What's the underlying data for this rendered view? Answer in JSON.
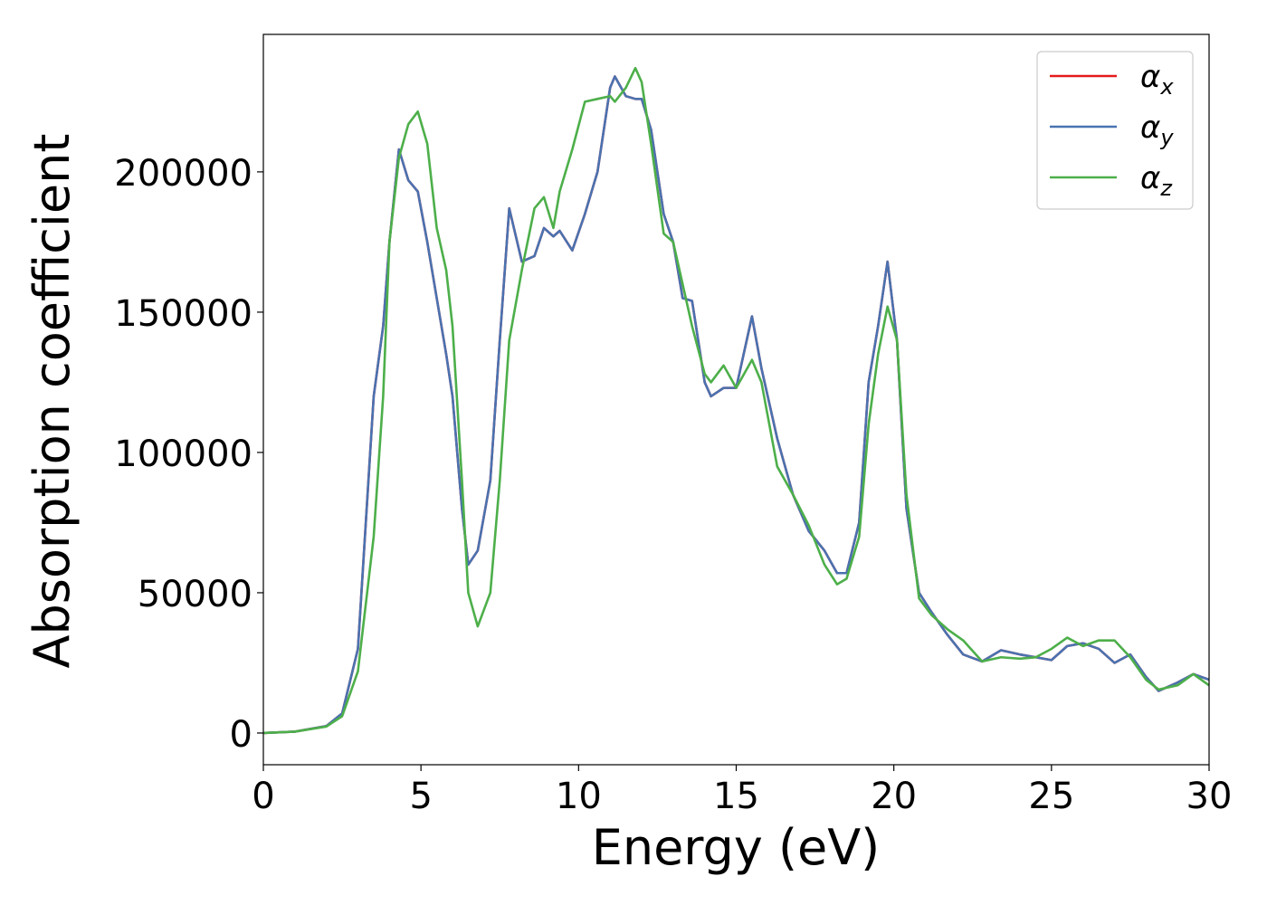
{
  "chart_data": {
    "type": "line",
    "xlabel": "Energy (eV)",
    "ylabel": "Absorption coefficient",
    "x": [
      0,
      1,
      2,
      2.5,
      3,
      3.5,
      3.8,
      4,
      4.3,
      4.6,
      4.9,
      5.2,
      5.5,
      5.8,
      6,
      6.3,
      6.5,
      6.8,
      7.2,
      7.5,
      7.8,
      8.2,
      8.6,
      8.9,
      9.2,
      9.4,
      9.8,
      10.2,
      10.6,
      11,
      11.15,
      11.5,
      11.8,
      12,
      12.3,
      12.7,
      13,
      13.3,
      13.6,
      14,
      14.2,
      14.6,
      15,
      15.5,
      15.8,
      16.3,
      16.8,
      17.3,
      17.8,
      18.2,
      18.5,
      18.9,
      19.2,
      19.5,
      19.8,
      20.1,
      20.4,
      20.8,
      21.2,
      21.7,
      22.2,
      22.8,
      23.4,
      24,
      24.5,
      25,
      25.5,
      26,
      26.5,
      27,
      27.5,
      28,
      28.4,
      29,
      29.5,
      30
    ],
    "series": [
      {
        "name": "αx",
        "color": "#e41a1c",
        "values": [
          0,
          500,
          2500,
          7000,
          30000,
          120000,
          145000,
          175000,
          208000,
          197000,
          193000,
          175000,
          155000,
          135000,
          120000,
          80000,
          60000,
          65000,
          90000,
          140000,
          187000,
          168000,
          170000,
          180000,
          177000,
          179000,
          172000,
          185000,
          200000,
          230000,
          234000,
          227000,
          226000,
          226000,
          215000,
          185000,
          175000,
          155000,
          154000,
          125000,
          120000,
          123000,
          123000,
          148500,
          130000,
          105000,
          85000,
          72000,
          65000,
          57000,
          57000,
          75000,
          125000,
          145000,
          168000,
          140000,
          80000,
          50000,
          43000,
          35000,
          28000,
          25500,
          29500,
          28000,
          27000,
          26000,
          31000,
          32000,
          30000,
          25000,
          28000,
          20000,
          15000,
          18000,
          21000,
          19000
        ]
      },
      {
        "name": "αy",
        "color": "#4a72b0",
        "values": [
          0,
          500,
          2500,
          7000,
          30000,
          120000,
          145000,
          175000,
          208000,
          197000,
          193000,
          175000,
          155000,
          135000,
          120000,
          80000,
          60000,
          65000,
          90000,
          140000,
          187000,
          168000,
          170000,
          180000,
          177000,
          179000,
          172000,
          185000,
          200000,
          230000,
          234000,
          227000,
          226000,
          226000,
          215000,
          185000,
          175000,
          155000,
          154000,
          125000,
          120000,
          123000,
          123000,
          148500,
          130000,
          105000,
          85000,
          72000,
          65000,
          57000,
          57000,
          75000,
          125000,
          145000,
          168000,
          140000,
          80000,
          50000,
          43000,
          35000,
          28000,
          25500,
          29500,
          28000,
          27000,
          26000,
          31000,
          32000,
          30000,
          25000,
          28000,
          20000,
          15000,
          18000,
          21000,
          19000
        ]
      },
      {
        "name": "αz",
        "color": "#4daf4a",
        "values": [
          0,
          500,
          2300,
          6000,
          22000,
          70000,
          120000,
          175000,
          205000,
          217000,
          221500,
          210000,
          180000,
          165000,
          145000,
          90000,
          50000,
          38000,
          50000,
          90000,
          140000,
          165000,
          187000,
          191000,
          180000,
          193000,
          208000,
          225000,
          226000,
          227000,
          225000,
          230000,
          237000,
          232000,
          210000,
          178000,
          175000,
          160000,
          145000,
          128000,
          125000,
          131000,
          123000,
          133000,
          125000,
          95000,
          85000,
          74000,
          60000,
          53000,
          55000,
          70000,
          110000,
          135000,
          152000,
          140000,
          85000,
          48000,
          42000,
          37000,
          33000,
          25500,
          27000,
          26500,
          27000,
          30000,
          34000,
          31000,
          33000,
          33000,
          27000,
          19000,
          15500,
          17000,
          21000,
          17000
        ]
      }
    ],
    "xlim": [
      0,
      30
    ],
    "xticks": [
      0,
      5,
      10,
      15,
      20,
      25,
      30
    ],
    "ylim": [
      -11300,
      249000
    ],
    "yticks": [
      0,
      50000,
      100000,
      150000,
      200000
    ],
    "legend": "upper right",
    "grid": false
  }
}
